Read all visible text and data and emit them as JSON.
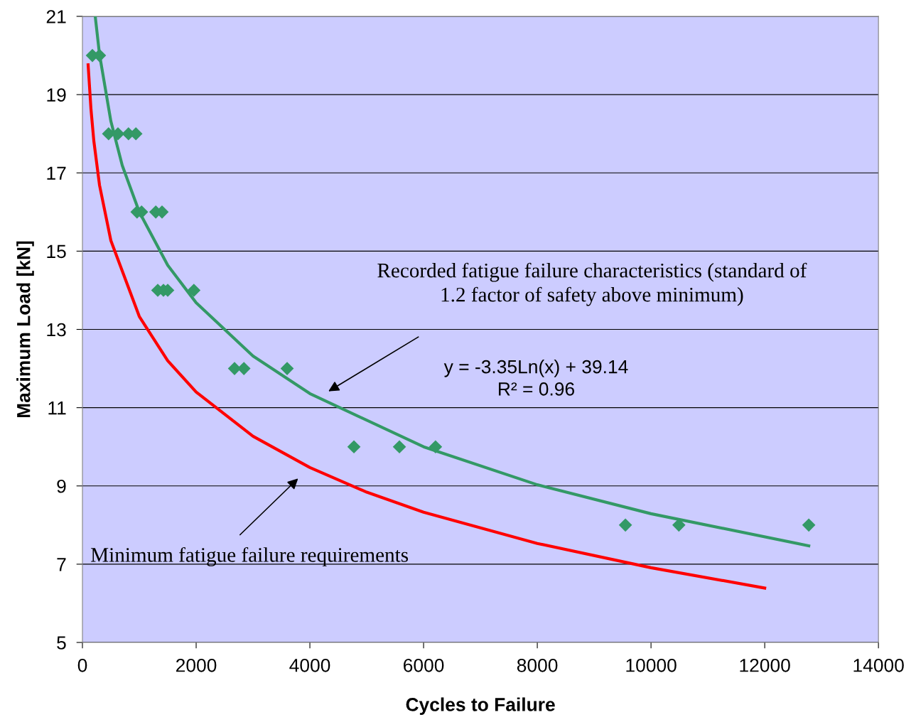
{
  "chart_data": {
    "type": "scatter",
    "xlabel": "Cycles to Failure",
    "ylabel": "Maximum Load [kN]",
    "xlim": [
      0,
      14000
    ],
    "xticks": [
      0,
      2000,
      4000,
      6000,
      8000,
      10000,
      12000,
      14000
    ],
    "ylim": [
      5,
      21
    ],
    "yticks": [
      5,
      7,
      9,
      11,
      13,
      15,
      17,
      19,
      21
    ],
    "grid": "y",
    "legend": false,
    "series": [
      {
        "type": "line",
        "color": "#339966",
        "marker": "none",
        "line_style": "solid",
        "x": [
          225,
          300,
          500,
          700,
          1000,
          1500,
          2000,
          3000,
          4000,
          6000,
          8000,
          10000,
          12775
        ],
        "values": [
          21.0,
          20.03,
          18.32,
          17.19,
          16.0,
          14.64,
          13.68,
          12.32,
          11.36,
          10.0,
          9.03,
          8.29,
          7.47
        ]
      },
      {
        "type": "line",
        "color": "#ff0000",
        "marker": "none",
        "line_style": "solid",
        "x": [
          100,
          150,
          200,
          300,
          500,
          1000,
          1500,
          2000,
          3000,
          4000,
          5000,
          6000,
          8000,
          10000,
          12000
        ],
        "values": [
          19.76,
          18.63,
          17.82,
          16.69,
          15.27,
          13.33,
          12.2,
          11.4,
          10.27,
          9.47,
          8.84,
          8.33,
          7.53,
          6.91,
          6.39
        ]
      },
      {
        "color": "#339966",
        "marker": "diamond",
        "x": [
          175,
          300,
          460,
          625,
          810,
          940,
          960,
          1040,
          1290,
          1400,
          1325,
          1425,
          1500,
          1960,
          2675,
          2840,
          3600,
          4775,
          5575,
          6210,
          9550,
          10490,
          12775
        ],
        "values": [
          20,
          20,
          18,
          18,
          18,
          18,
          16,
          16,
          16,
          16,
          14,
          14,
          14,
          14,
          12,
          12,
          12,
          10,
          10,
          10,
          8,
          8,
          8
        ]
      }
    ],
    "annotations": [
      {
        "text": "Recorded fatigue failure characteristics (standard of\n1.2 factor of safety above minimum)"
      },
      "y = -3.35Ln(x) + 39.14\nR² = 0.96",
      "Minimum fatigue failure requirements"
    ]
  }
}
